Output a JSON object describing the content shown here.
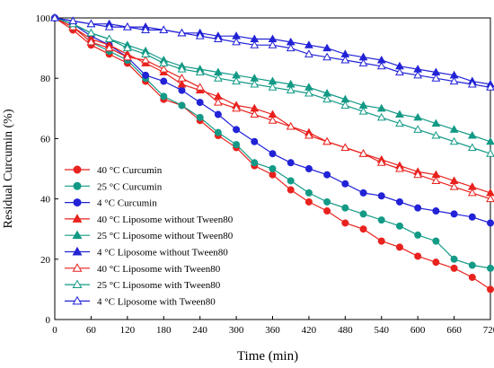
{
  "chart_data": {
    "type": "line",
    "xlabel": "Time (min)",
    "ylabel": "Residual Curcumin (%)",
    "xlim": [
      0,
      720
    ],
    "ylim": [
      0,
      100
    ],
    "xticks": [
      0,
      60,
      120,
      180,
      240,
      300,
      360,
      420,
      480,
      540,
      600,
      660,
      720
    ],
    "yticks": [
      0,
      20,
      40,
      60,
      80,
      100
    ],
    "grid": false,
    "legend_position": "bottom-left",
    "x": [
      0,
      30,
      60,
      90,
      120,
      150,
      180,
      210,
      240,
      270,
      300,
      330,
      360,
      390,
      420,
      450,
      480,
      510,
      540,
      570,
      600,
      630,
      660,
      690,
      720
    ],
    "series": [
      {
        "name": "40 °C Curcumin",
        "color": "#e8221e",
        "marker": "circle",
        "filled": true,
        "values": [
          100,
          96,
          91,
          88,
          85,
          79,
          73,
          71,
          66,
          61,
          57,
          51,
          48,
          43,
          39,
          36,
          32,
          30,
          26,
          24,
          21,
          19,
          17,
          14,
          10
        ]
      },
      {
        "name": "25 °C Curcumin",
        "color": "#139a86",
        "marker": "circle",
        "filled": true,
        "values": [
          100,
          97,
          92,
          89,
          86,
          80,
          74,
          71,
          67,
          62,
          58,
          52,
          50,
          46,
          42,
          39,
          37,
          35,
          33,
          31,
          28,
          26,
          20,
          18,
          17
        ]
      },
      {
        "name": "4 °C Curcumin",
        "color": "#2222d6",
        "marker": "circle",
        "filled": true,
        "values": [
          100,
          98,
          94,
          91,
          87,
          81,
          79,
          76,
          72,
          68,
          63,
          59,
          55,
          52,
          50,
          48,
          45,
          42,
          41,
          39,
          37,
          36,
          35,
          34,
          32
        ]
      },
      {
        "name": "40 °C Liposome without Tween80",
        "color": "#e8221e",
        "marker": "triangle",
        "filled": true,
        "values": [
          100,
          97,
          93,
          91,
          88,
          85,
          82,
          78,
          76,
          74,
          71,
          70,
          68,
          64,
          62,
          59,
          57,
          55,
          53,
          51,
          49,
          48,
          46,
          44,
          42
        ]
      },
      {
        "name": "25 °C Liposome without Tween80",
        "color": "#139a86",
        "marker": "triangle",
        "filled": true,
        "values": [
          100,
          98,
          95,
          93,
          91,
          89,
          86,
          84,
          83,
          82,
          81,
          80,
          79,
          78,
          77,
          75,
          73,
          71,
          70,
          68,
          67,
          65,
          63,
          61,
          59
        ]
      },
      {
        "name": "4 °C Liposome without Tween80",
        "color": "#2222d6",
        "marker": "triangle",
        "filled": true,
        "values": [
          100,
          99,
          98,
          98,
          97,
          97,
          96,
          95,
          95,
          94,
          94,
          93,
          93,
          92,
          91,
          90,
          88,
          87,
          86,
          84,
          83,
          82,
          81,
          79,
          78
        ]
      },
      {
        "name": "40 °C Liposome with Tween80",
        "color": "#e8221e",
        "marker": "triangle",
        "filled": false,
        "values": [
          100,
          97,
          92,
          90,
          87,
          86,
          83,
          80,
          77,
          72,
          70,
          68,
          66,
          64,
          61,
          59,
          57,
          55,
          52,
          50,
          48,
          46,
          44,
          42,
          40
        ]
      },
      {
        "name": "25 °C Liposome with Tween80",
        "color": "#139a86",
        "marker": "triangle",
        "filled": false,
        "values": [
          100,
          98,
          95,
          93,
          90,
          88,
          85,
          83,
          82,
          80,
          79,
          78,
          77,
          76,
          75,
          73,
          71,
          69,
          67,
          65,
          63,
          61,
          59,
          57,
          55
        ]
      },
      {
        "name": "4 °C Liposome with Tween80",
        "color": "#2222d6",
        "marker": "triangle",
        "filled": false,
        "values": [
          100,
          99,
          98,
          97,
          97,
          96,
          96,
          95,
          94,
          93,
          92,
          91,
          91,
          90,
          88,
          87,
          86,
          85,
          84,
          82,
          81,
          80,
          79,
          78,
          77
        ]
      }
    ]
  }
}
